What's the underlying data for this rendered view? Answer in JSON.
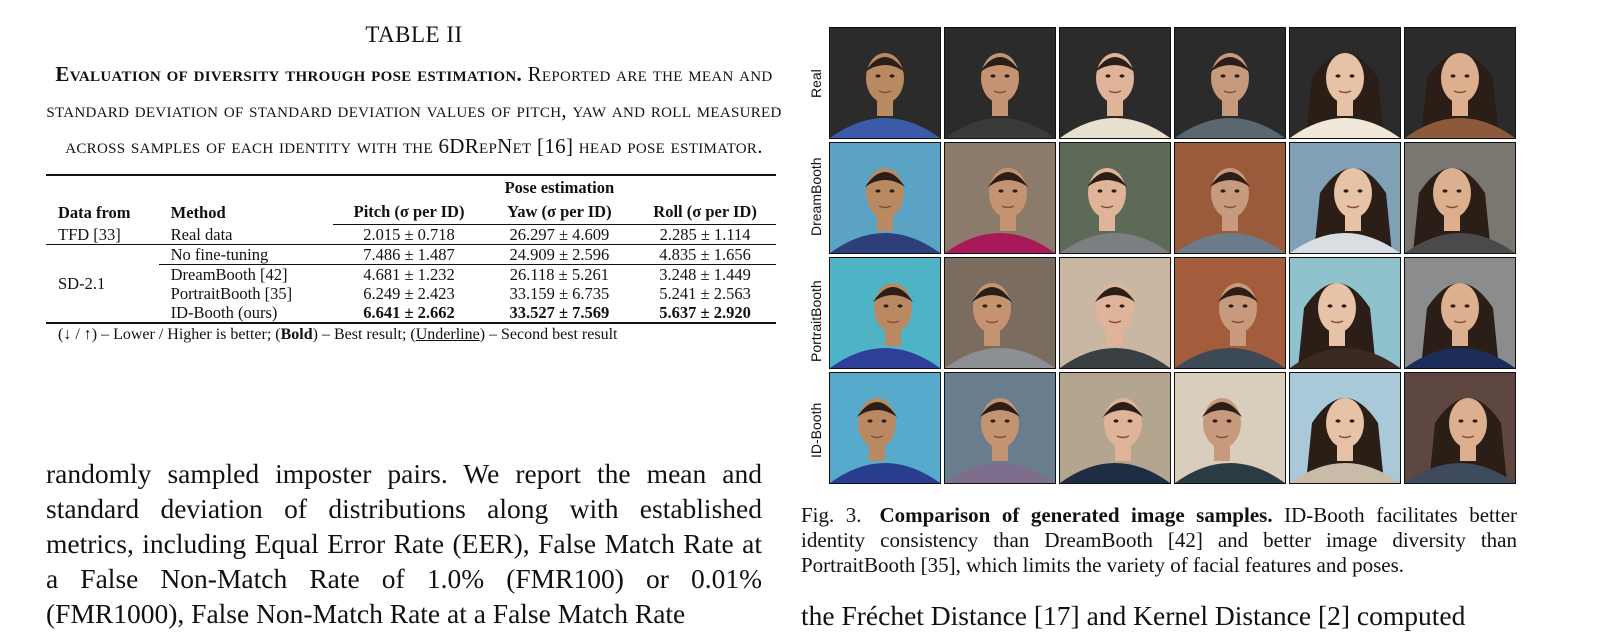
{
  "table": {
    "number": "TABLE II",
    "caption_lead": "Evaluation of diversity through pose estimation.",
    "caption_rest": " Reported are the mean and standard deviation of standard deviation values of pitch, yaw and roll measured across samples of each identity with the 6DRepNet [16] head pose estimator.",
    "headers": {
      "data_from": "Data from",
      "method": "Method",
      "group": "Pose estimation",
      "pitch": "Pitch (σ per ID)",
      "yaw": "Yaw (σ per ID)",
      "roll": "Roll (σ per ID)"
    },
    "rows": [
      {
        "data_from": "TFD [33]",
        "method": "Real data",
        "pitch": "2.015 ± 0.718",
        "yaw": "26.297 ± 4.609",
        "roll": "2.285 ± 1.114"
      },
      {
        "data_from": "SD-2.1",
        "method": "No fine-tuning",
        "pitch": "7.486 ± 1.487",
        "yaw": "24.909 ± 2.596",
        "roll": "4.835 ± 1.656"
      },
      {
        "method": "DreamBooth [42]",
        "pitch": "4.681 ± 1.232",
        "yaw": "26.118 ± 5.261",
        "roll": "3.248 ± 1.449"
      },
      {
        "method": "PortraitBooth [35]",
        "pitch": "6.249 ± 2.423",
        "yaw": "33.159 ± 6.735",
        "roll": "5.241 ± 2.563"
      },
      {
        "method": "ID-Booth (ours)",
        "pitch": "6.641 ± 2.662",
        "yaw": "33.527 ± 7.569",
        "roll": "5.637 ± 2.920"
      }
    ],
    "legend_a": "(↓ / ↑) – Lower / Higher is better; (",
    "legend_bold": "Bold",
    "legend_b": ") – Best result; (",
    "legend_underline": "Underline",
    "legend_c": ") – Second best result"
  },
  "body_left": "randomly sampled imposter pairs. We report the mean and standard deviation of distributions along with established metrics, including Equal Error Rate (EER), False Match Rate at a False Non-Match Rate of 1.0% (FMR100) or 0.01% (FMR1000), False Non-Match Rate at a False Match Rate",
  "figure": {
    "row_labels": [
      "Real",
      "DreamBooth",
      "PortraitBooth",
      "ID-Booth"
    ],
    "fig_number": "Fig. 3.",
    "caption_bold": "Comparison of generated image samples.",
    "caption_rest": " ID-Booth facilitates better identity consistency than DreamBooth [42] and better image diversity than PortraitBooth [35], which limits the variety of facial features and poses."
  },
  "body_right": "the Fréchet Distance [17] and Kernel Distance [2] computed",
  "colors": {
    "bg_real": "#2b2b2b",
    "skin": [
      "#b98a62",
      "#c49472",
      "#e0b498",
      "#c79a7e",
      "#e6c2a6",
      "#dcb08e"
    ],
    "hair": "#2a1e16"
  }
}
